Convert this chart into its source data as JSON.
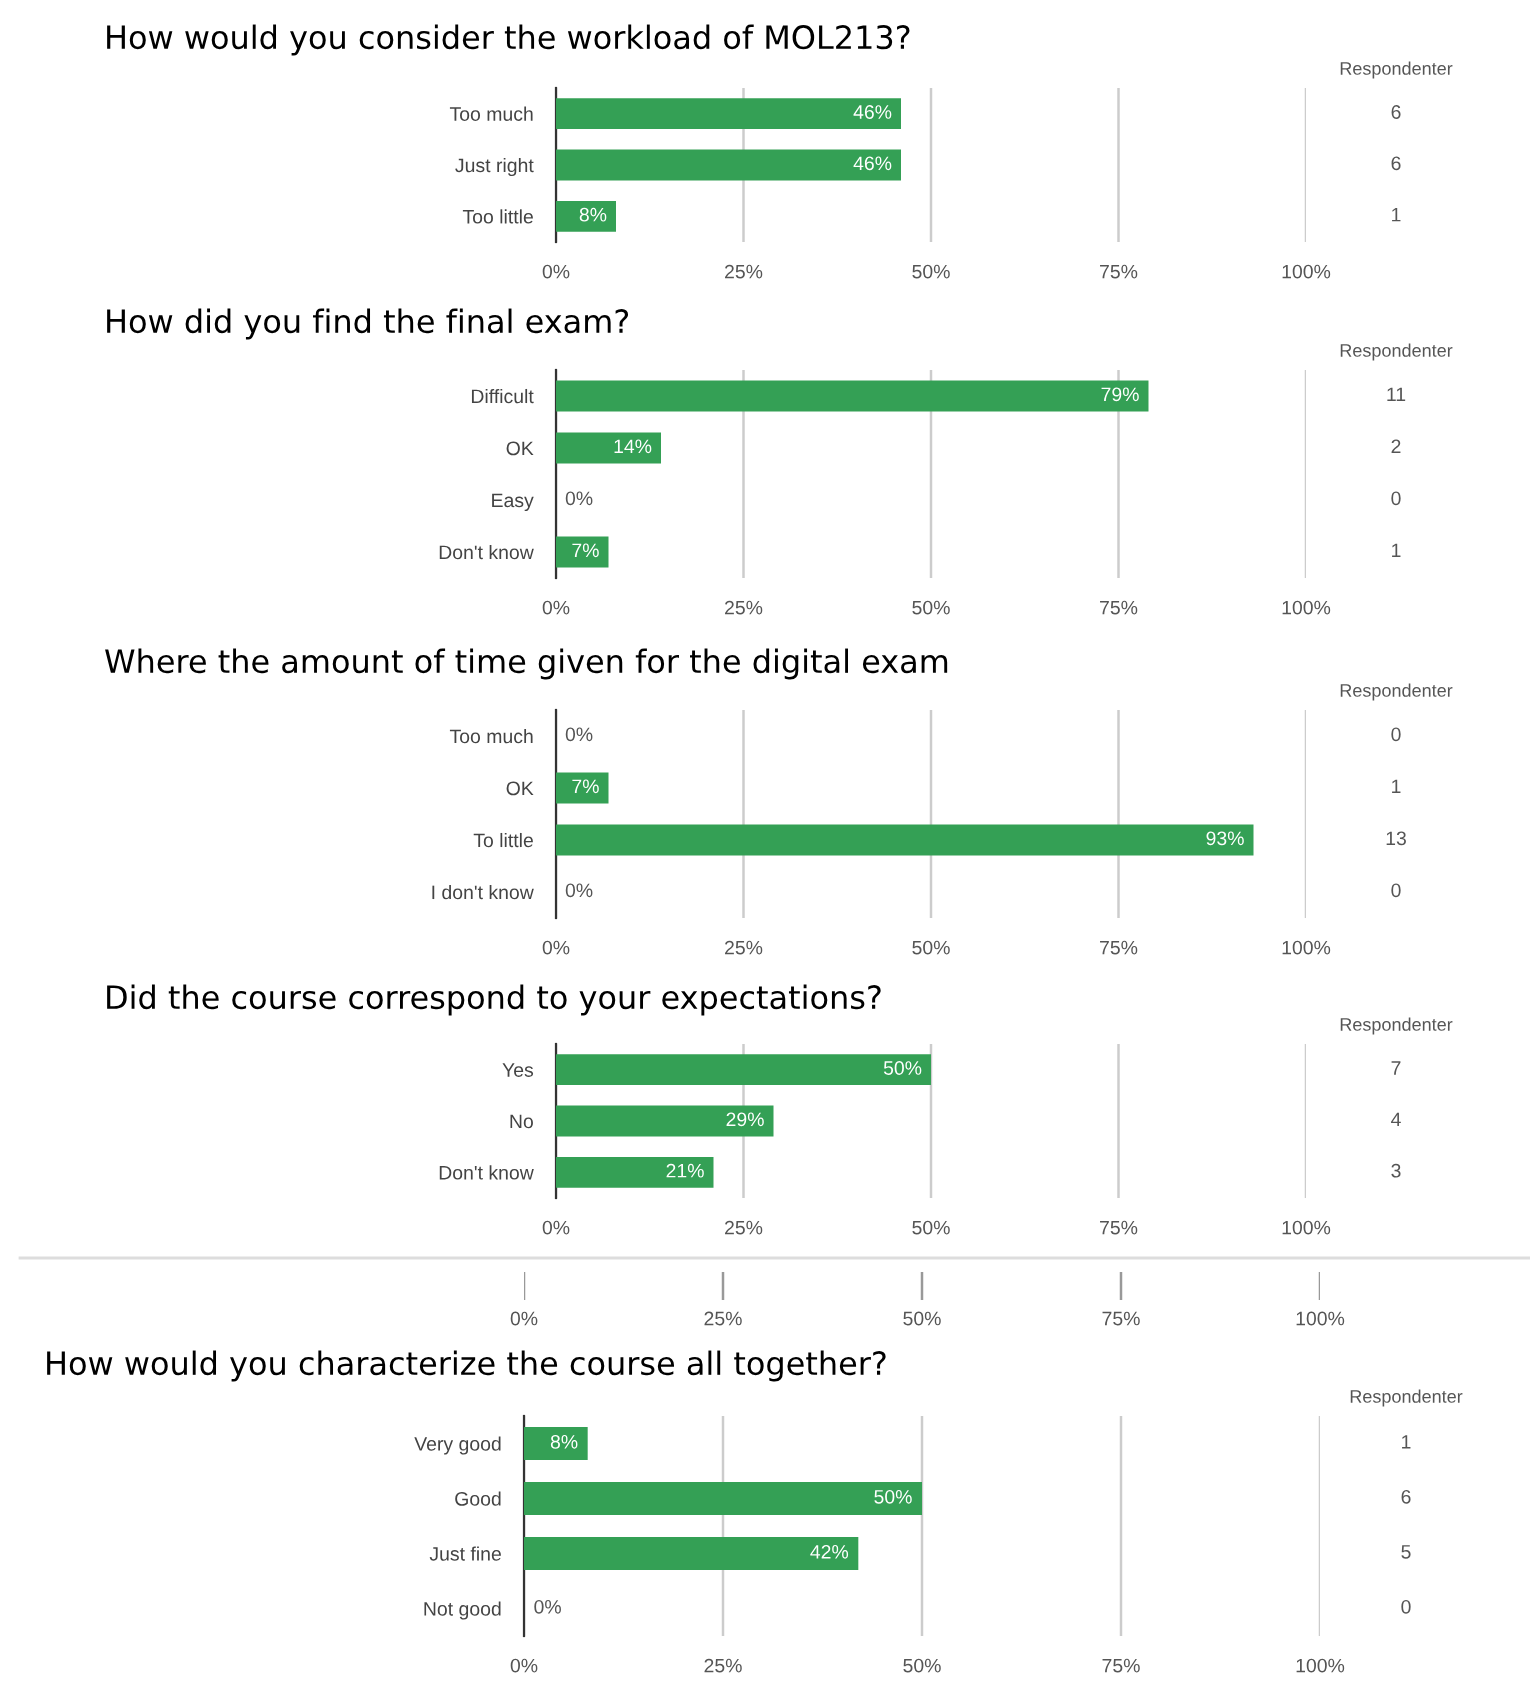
{
  "chart_data": [
    {
      "type": "bar",
      "orientation": "horizontal",
      "title": "How would you consider the workload of MOL213?",
      "categories": [
        "Too much",
        "Just right",
        "Too little"
      ],
      "values": [
        46,
        46,
        8
      ],
      "value_labels": [
        "46%",
        "46%",
        "8%"
      ],
      "color": "#34a055",
      "xlim": [
        0,
        100
      ],
      "xticks": [
        {
          "value": 0,
          "label": "0%"
        },
        {
          "value": 25,
          "label": "25%"
        },
        {
          "value": 50,
          "label": "50%"
        },
        {
          "value": 75,
          "label": "75%"
        },
        {
          "value": 100,
          "label": "100%"
        }
      ],
      "grid": "x",
      "annotations": [
        "Respondenter",
        "6",
        "6",
        "1"
      ]
    },
    {
      "type": "bar",
      "orientation": "horizontal",
      "title": "How did you find the final exam?",
      "categories": [
        "Difficult",
        "OK",
        "Easy",
        "Don't know"
      ],
      "values": [
        79,
        14,
        0,
        7
      ],
      "value_labels": [
        "79%",
        "14%",
        "0%",
        "7%"
      ],
      "color": "#34a055",
      "xlim": [
        0,
        100
      ],
      "xticks": [
        {
          "value": 0,
          "label": "0%"
        },
        {
          "value": 25,
          "label": "25%"
        },
        {
          "value": 50,
          "label": "50%"
        },
        {
          "value": 75,
          "label": "75%"
        },
        {
          "value": 100,
          "label": "100%"
        }
      ],
      "grid": "x",
      "annotations": [
        "Respondenter",
        "11",
        "2",
        "0",
        "1"
      ]
    },
    {
      "type": "bar",
      "orientation": "horizontal",
      "title": "Where the amount of time given for the digital exam",
      "categories": [
        "Too much",
        "OK",
        "To little",
        "I don't know"
      ],
      "values": [
        0,
        7,
        93,
        0
      ],
      "value_labels": [
        "0%",
        "7%",
        "93%",
        "0%"
      ],
      "color": "#34a055",
      "xlim": [
        0,
        100
      ],
      "xticks": [
        {
          "value": 0,
          "label": "0%"
        },
        {
          "value": 25,
          "label": "25%"
        },
        {
          "value": 50,
          "label": "50%"
        },
        {
          "value": 75,
          "label": "75%"
        },
        {
          "value": 100,
          "label": "100%"
        }
      ],
      "grid": "x",
      "annotations": [
        "Respondenter",
        "0",
        "1",
        "13",
        "0"
      ]
    },
    {
      "type": "bar",
      "orientation": "horizontal",
      "title": "Did the course correspond to your expectations?",
      "categories": [
        "Yes",
        "No",
        "Don't know"
      ],
      "values": [
        50,
        29,
        21
      ],
      "value_labels": [
        "50%",
        "29%",
        "21%"
      ],
      "color": "#34a055",
      "xlim": [
        0,
        100
      ],
      "xticks": [
        {
          "value": 0,
          "label": "0%"
        },
        {
          "value": 25,
          "label": "25%"
        },
        {
          "value": 50,
          "label": "50%"
        },
        {
          "value": 75,
          "label": "75%"
        },
        {
          "value": 100,
          "label": "100%"
        }
      ],
      "grid": "x",
      "annotations": [
        "Respondenter",
        "7",
        "4",
        "3"
      ]
    },
    {
      "type": "bar",
      "orientation": "horizontal",
      "title": "How would you characterize the course all together?",
      "categories": [
        "Very good",
        "Good",
        "Just fine",
        "Not good"
      ],
      "values": [
        8,
        50,
        42,
        0
      ],
      "value_labels": [
        "8%",
        "50%",
        "42%",
        "0%"
      ],
      "color": "#34a055",
      "xlim": [
        0,
        100
      ],
      "xticks": [
        {
          "value": 0,
          "label": "0%"
        },
        {
          "value": 25,
          "label": "25%"
        },
        {
          "value": 50,
          "label": "50%"
        },
        {
          "value": 75,
          "label": "75%"
        },
        {
          "value": 100,
          "label": "100%"
        }
      ],
      "grid": "x",
      "annotations": [
        "Respondenter",
        "1",
        "6",
        "5",
        "0"
      ],
      "x2lim": [
        0,
        100
      ],
      "x2ticks": [
        {
          "value": 0,
          "label": "0%"
        },
        {
          "value": 25,
          "label": "25%"
        },
        {
          "value": 50,
          "label": "50%"
        },
        {
          "value": 75,
          "label": "75%"
        },
        {
          "value": 100,
          "label": "100%"
        }
      ]
    }
  ]
}
